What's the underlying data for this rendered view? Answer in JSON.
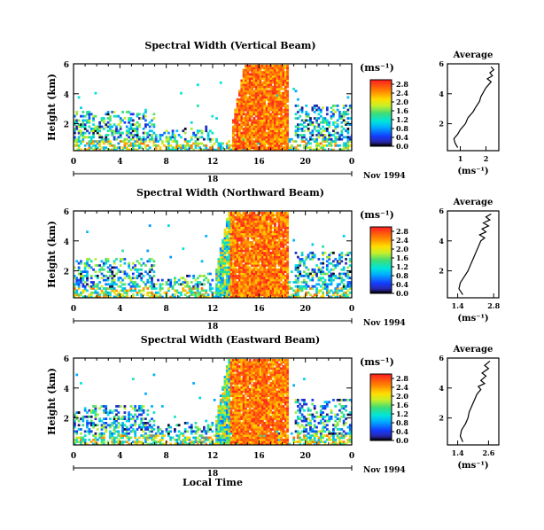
{
  "x_unit_label": "Local Time",
  "colorbar_unit": "(ms⁻¹)",
  "chart_data": [
    {
      "type": "heatmap",
      "title": "Spectral Width (Vertical Beam)",
      "ylabel": "Height (km)",
      "xlabel": "Local Time",
      "x_ticks": [
        "0",
        "4",
        "8",
        "12",
        "16",
        "20",
        "0"
      ],
      "xlim": [
        0,
        24
      ],
      "y_ticks": [
        "2",
        "4",
        "6"
      ],
      "ylim": [
        0.2,
        6
      ],
      "date_day": "18",
      "date_label": "Nov 1994",
      "colorbar": {
        "unit": "(ms⁻¹)",
        "ticks": [
          "0.0",
          "0.4",
          "0.8",
          "1.2",
          "1.6",
          "2.0",
          "2.4",
          "2.8"
        ],
        "range": [
          0,
          3.0
        ]
      },
      "profile": {
        "title": "Average",
        "xlabel": "(ms⁻¹)",
        "x_ticks": [
          "1",
          "2"
        ],
        "xlim": [
          0.5,
          2.5
        ],
        "y_ticks": [
          "2",
          "4",
          "6"
        ],
        "ylim": [
          0.2,
          6
        ],
        "points": [
          [
            0.9,
            0.4
          ],
          [
            0.8,
            0.7
          ],
          [
            0.75,
            1.0
          ],
          [
            0.9,
            1.3
          ],
          [
            1.0,
            1.6
          ],
          [
            1.2,
            2.0
          ],
          [
            1.3,
            2.4
          ],
          [
            1.5,
            2.8
          ],
          [
            1.6,
            3.1
          ],
          [
            1.75,
            3.5
          ],
          [
            1.8,
            3.8
          ],
          [
            1.9,
            4.1
          ],
          [
            2.0,
            4.4
          ],
          [
            2.1,
            4.6
          ],
          [
            2.2,
            4.8
          ],
          [
            2.05,
            5.0
          ],
          [
            2.25,
            5.2
          ],
          [
            2.15,
            5.4
          ],
          [
            2.3,
            5.6
          ],
          [
            2.2,
            5.8
          ]
        ]
      }
    },
    {
      "type": "heatmap",
      "title": "Spectral Width (Northward Beam)",
      "ylabel": "Height (km)",
      "xlabel": "Local Time",
      "x_ticks": [
        "0",
        "4",
        "8",
        "12",
        "16",
        "20",
        "0"
      ],
      "xlim": [
        0,
        24
      ],
      "y_ticks": [
        "2",
        "4",
        "6"
      ],
      "ylim": [
        0.2,
        6
      ],
      "date_day": "18",
      "date_label": "Nov 1994",
      "colorbar": {
        "unit": "(ms⁻¹)",
        "ticks": [
          "0.0",
          "0.4",
          "0.8",
          "1.2",
          "1.6",
          "2.0",
          "2.4",
          "2.8"
        ],
        "range": [
          0,
          3.0
        ]
      },
      "profile": {
        "title": "Average",
        "xlabel": "(ms⁻¹)",
        "x_ticks": [
          "1.4",
          "2.8"
        ],
        "xlim": [
          1.0,
          3.0
        ],
        "y_ticks": [
          "2",
          "4",
          "6"
        ],
        "ylim": [
          0.2,
          6
        ],
        "points": [
          [
            1.6,
            0.4
          ],
          [
            1.45,
            0.8
          ],
          [
            1.5,
            1.2
          ],
          [
            1.65,
            1.6
          ],
          [
            1.8,
            2.0
          ],
          [
            1.9,
            2.4
          ],
          [
            2.0,
            2.8
          ],
          [
            2.1,
            3.2
          ],
          [
            2.2,
            3.6
          ],
          [
            2.3,
            4.0
          ],
          [
            2.45,
            4.2
          ],
          [
            2.25,
            4.4
          ],
          [
            2.5,
            4.6
          ],
          [
            2.35,
            4.8
          ],
          [
            2.6,
            5.0
          ],
          [
            2.4,
            5.2
          ],
          [
            2.65,
            5.4
          ],
          [
            2.5,
            5.6
          ],
          [
            2.7,
            5.8
          ]
        ]
      }
    },
    {
      "type": "heatmap",
      "title": "Spectral Width (Eastward Beam)",
      "ylabel": "Height (km)",
      "xlabel": "Local Time",
      "x_ticks": [
        "0",
        "4",
        "8",
        "12",
        "16",
        "20",
        "0"
      ],
      "xlim": [
        0,
        24
      ],
      "y_ticks": [
        "2",
        "4",
        "6"
      ],
      "ylim": [
        0.2,
        6
      ],
      "date_day": "18",
      "date_label": "Nov 1994",
      "colorbar": {
        "unit": "(ms⁻¹)",
        "ticks": [
          "0.0",
          "0.4",
          "0.8",
          "1.2",
          "1.6",
          "2.0",
          "2.4",
          "2.8"
        ],
        "range": [
          0,
          3.0
        ]
      },
      "profile": {
        "title": "Average",
        "xlabel": "(ms⁻¹)",
        "x_ticks": [
          "1.4",
          "2.6"
        ],
        "xlim": [
          1.0,
          3.0
        ],
        "y_ticks": [
          "2",
          "4",
          "6"
        ],
        "ylim": [
          0.2,
          6
        ],
        "points": [
          [
            1.6,
            0.4
          ],
          [
            1.5,
            0.8
          ],
          [
            1.55,
            1.2
          ],
          [
            1.7,
            1.6
          ],
          [
            1.8,
            2.0
          ],
          [
            1.85,
            2.4
          ],
          [
            1.95,
            2.8
          ],
          [
            2.05,
            3.2
          ],
          [
            2.15,
            3.6
          ],
          [
            2.3,
            3.9
          ],
          [
            2.2,
            4.1
          ],
          [
            2.45,
            4.3
          ],
          [
            2.3,
            4.5
          ],
          [
            2.5,
            4.8
          ],
          [
            2.35,
            5.0
          ],
          [
            2.6,
            5.3
          ],
          [
            2.45,
            5.5
          ],
          [
            2.65,
            5.8
          ]
        ]
      }
    }
  ]
}
